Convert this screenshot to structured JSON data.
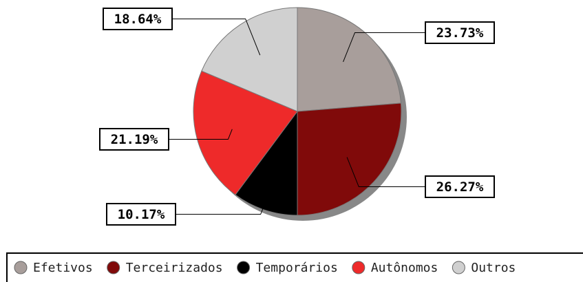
{
  "chart_data": {
    "type": "pie",
    "categories": [
      "Efetivos",
      "Terceirizados",
      "Temporários",
      "Autônomos",
      "Outros"
    ],
    "values": [
      23.73,
      26.27,
      10.17,
      21.19,
      18.64
    ],
    "value_labels": [
      "23.73%",
      "26.27%",
      "10.17%",
      "21.19%",
      "18.64%"
    ],
    "colors": [
      "#a89e9b",
      "#800a0a",
      "#000000",
      "#ee2a2a",
      "#d0d0d0"
    ],
    "legend": "bottom"
  }
}
